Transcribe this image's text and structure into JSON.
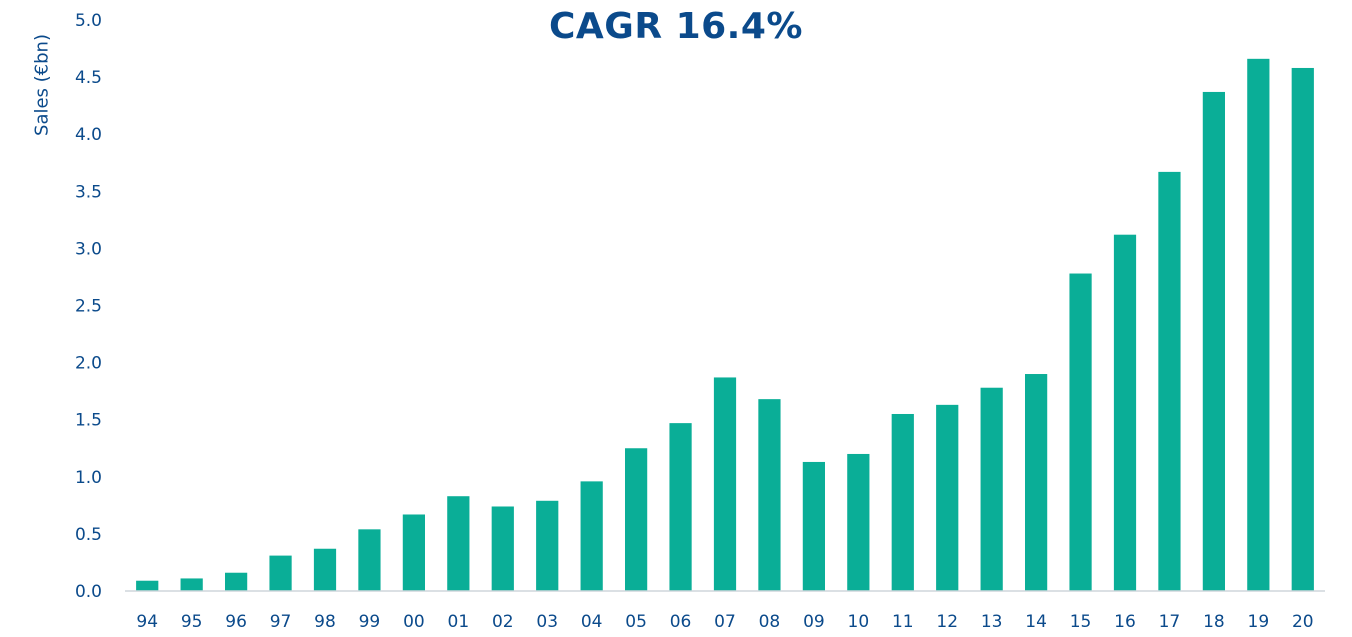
{
  "chart_data": {
    "type": "bar",
    "title": "CAGR 16.4%",
    "xlabel": "",
    "ylabel": "Sales (€bn)",
    "ylim": [
      0,
      5
    ],
    "yticks": [
      "0.0",
      "0.5",
      "1.0",
      "1.5",
      "2.0",
      "2.5",
      "3.0",
      "3.5",
      "4.0",
      "4.5",
      "5.0"
    ],
    "categories": [
      "94",
      "95",
      "96",
      "97",
      "98",
      "99",
      "00",
      "01",
      "02",
      "03",
      "04",
      "05",
      "06",
      "07",
      "08",
      "09",
      "10",
      "11",
      "12",
      "13",
      "14",
      "15",
      "16",
      "17",
      "18",
      "19",
      "20"
    ],
    "values": [
      0.09,
      0.11,
      0.16,
      0.31,
      0.37,
      0.54,
      0.67,
      0.83,
      0.74,
      0.79,
      0.96,
      1.25,
      1.47,
      1.87,
      1.68,
      1.13,
      1.2,
      1.55,
      1.63,
      1.78,
      1.9,
      2.78,
      3.12,
      3.67,
      4.37,
      4.66,
      4.58
    ],
    "grid": false,
    "colors": {
      "bar": "#0aae97",
      "text": "#0b4a8b",
      "axis": "#cfd6dc"
    }
  }
}
